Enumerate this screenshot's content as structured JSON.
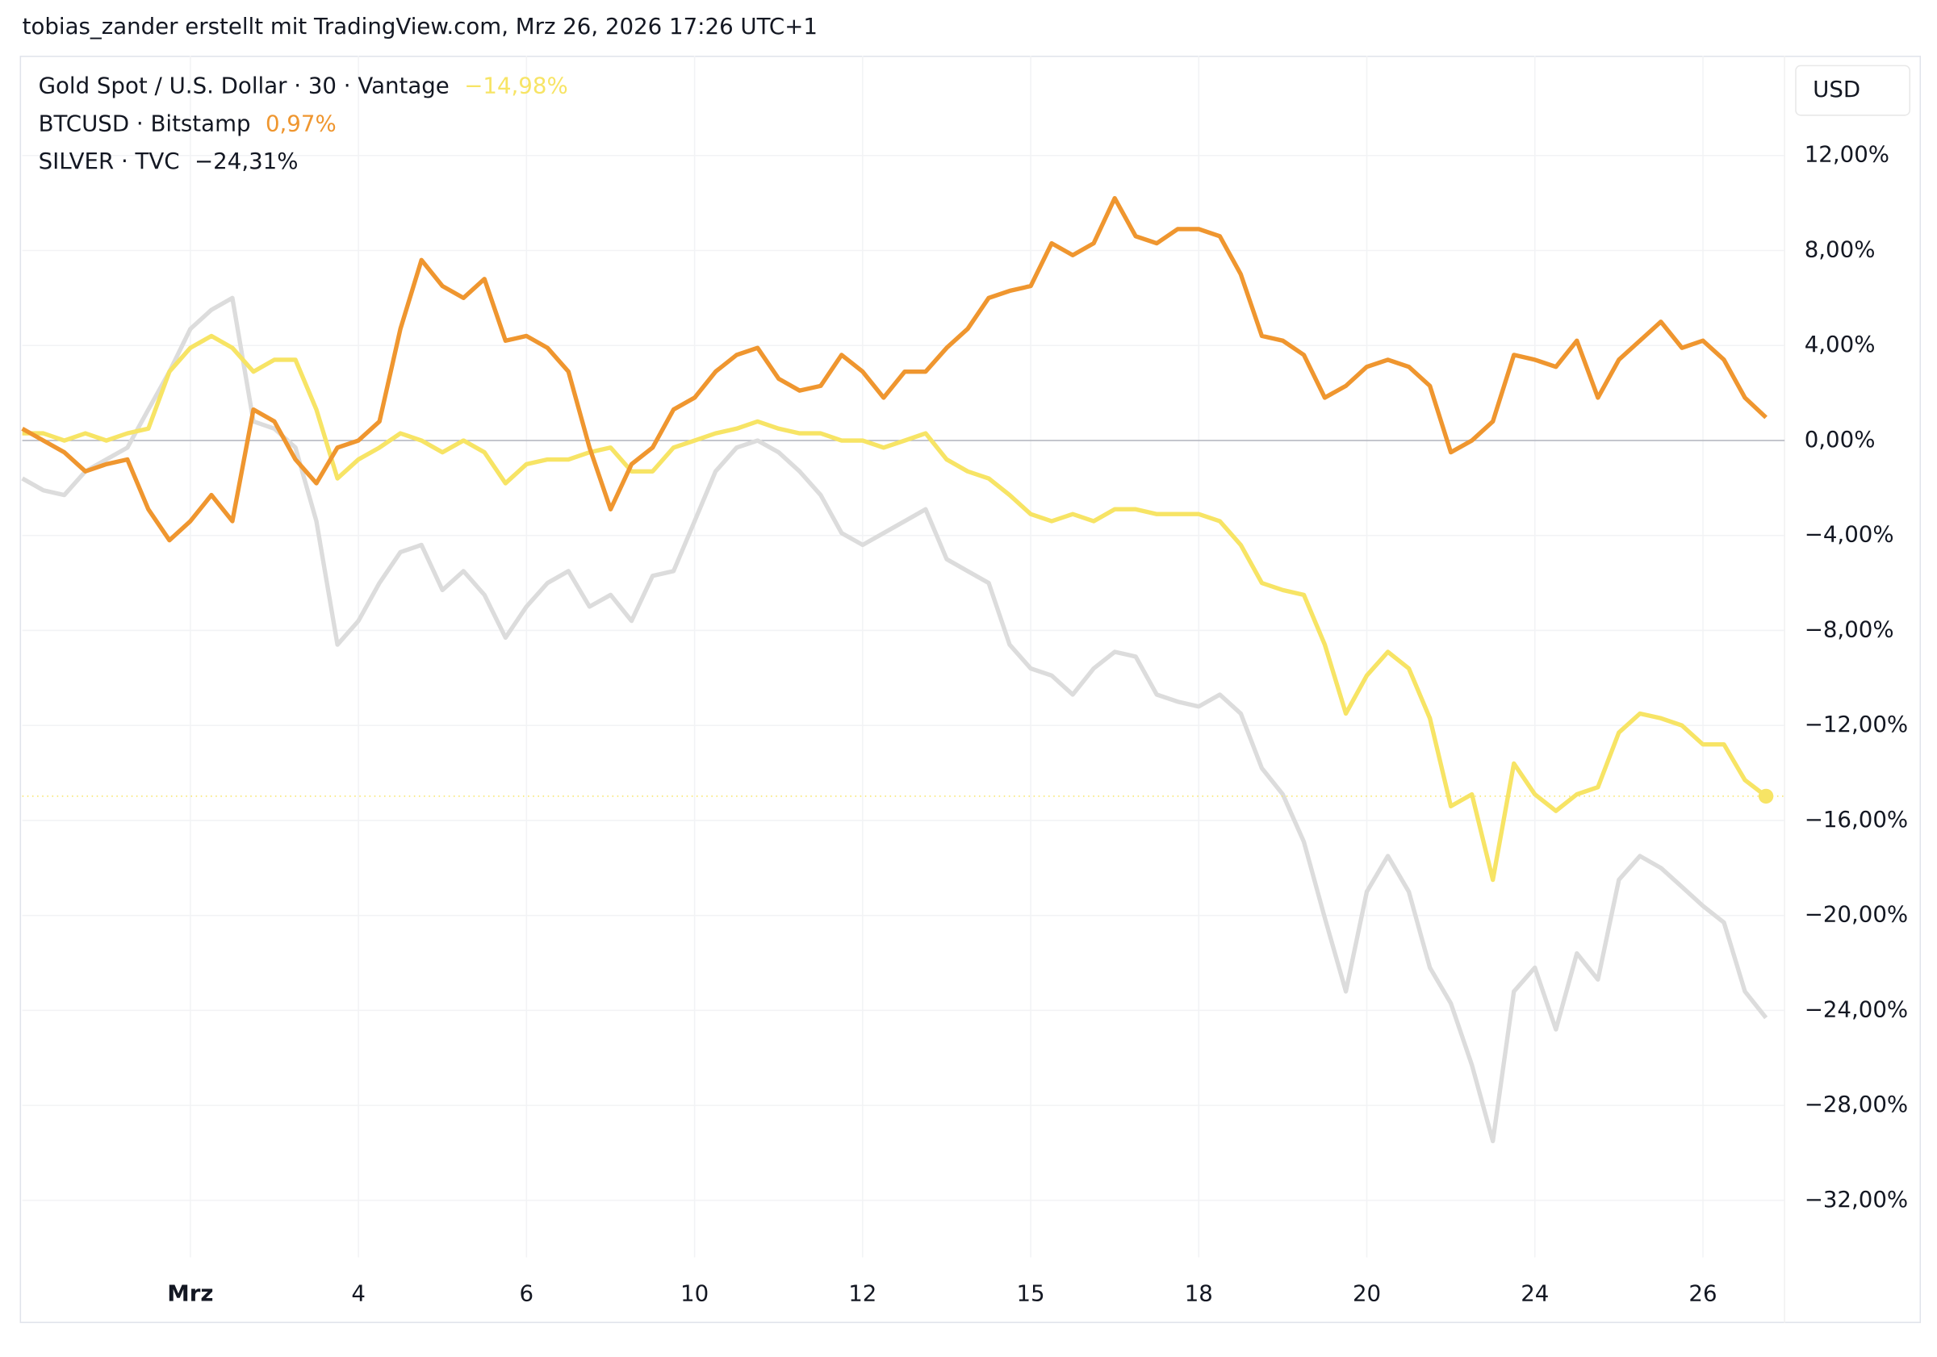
{
  "header": {
    "title": "tobias_zander erstellt mit TradingView.com, Mrz 26, 2026 17:26 UTC+1"
  },
  "chart_data": {
    "type": "line",
    "currency": "USD",
    "categories": [
      null,
      null,
      null,
      null,
      null,
      null,
      null,
      null,
      "Mrz",
      null,
      null,
      null,
      null,
      null,
      null,
      null,
      "4",
      null,
      null,
      null,
      null,
      null,
      null,
      null,
      "6",
      null,
      null,
      null,
      null,
      null,
      null,
      null,
      "10",
      null,
      null,
      null,
      null,
      null,
      null,
      null,
      "12",
      null,
      null,
      null,
      null,
      null,
      null,
      null,
      "15",
      null,
      null,
      null,
      null,
      null,
      null,
      null,
      "18",
      null,
      null,
      null,
      null,
      null,
      null,
      null,
      "20",
      null,
      null,
      null,
      null,
      null,
      null,
      null,
      "24",
      null,
      null,
      null,
      null,
      null,
      null,
      null,
      "26",
      null,
      null,
      null
    ],
    "series": [
      {
        "name": "Gold Spot / U.S. Dollar · 30 · Vantage",
        "last_value_label": "−14,98%",
        "color": "#f7e465",
        "values": [
          0.3,
          0.3,
          0,
          0.3,
          0,
          0.3,
          0.5,
          2.9,
          3.9,
          4.4,
          3.9,
          2.9,
          3.4,
          3.4,
          1.3,
          -1.6,
          -0.8,
          -0.3,
          0.3,
          0,
          -0.5,
          0,
          -0.5,
          -1.8,
          -1,
          -0.8,
          -0.8,
          -0.5,
          -0.3,
          -1.3,
          -1.3,
          -0.3,
          0,
          0.3,
          0.5,
          0.8,
          0.5,
          0.3,
          0.3,
          0,
          0,
          -0.3,
          0,
          0.3,
          -0.8,
          -1.3,
          -1.6,
          -2.3,
          -3.1,
          -3.4,
          -3.1,
          -3.4,
          -2.9,
          -2.9,
          -3.1,
          -3.1,
          -3.1,
          -3.4,
          -4.4,
          -6,
          -6.3,
          -6.5,
          -8.6,
          -11.5,
          -9.9,
          -8.9,
          -9.6,
          -11.7,
          -15.4,
          -14.9,
          -18.5,
          -13.6,
          -14.9,
          -15.6,
          -14.9,
          -14.6,
          -12.3,
          -11.5,
          -11.7,
          -12,
          -12.8,
          -12.8,
          -14.3,
          -14.98
        ]
      },
      {
        "name": "BTCUSD · Bitstamp",
        "last_value_label": "0,97%",
        "color": "#ef962f",
        "values": [
          0.5,
          0,
          -0.5,
          -1.3,
          -1,
          -0.8,
          -2.9,
          -4.2,
          -3.4,
          -2.3,
          -3.4,
          1.3,
          0.8,
          -0.8,
          -1.8,
          -0.3,
          0,
          0.8,
          4.7,
          7.6,
          6.5,
          6,
          6.8,
          4.2,
          4.4,
          3.9,
          2.9,
          -0.3,
          -2.9,
          -1,
          -0.3,
          1.3,
          1.8,
          2.9,
          3.6,
          3.9,
          2.6,
          2.1,
          2.3,
          3.6,
          2.9,
          1.8,
          2.9,
          2.9,
          3.9,
          4.7,
          6,
          6.3,
          6.5,
          8.3,
          7.8,
          8.3,
          10.2,
          8.6,
          8.3,
          8.9,
          8.9,
          8.6,
          7,
          4.4,
          4.2,
          3.6,
          1.8,
          2.3,
          3.1,
          3.4,
          3.1,
          2.3,
          -0.5,
          0,
          0.8,
          3.6,
          3.4,
          3.1,
          4.2,
          1.8,
          3.4,
          4.2,
          5,
          3.9,
          4.2,
          3.4,
          1.8,
          0.97
        ]
      },
      {
        "name": "SILVER · TVC",
        "last_value_label": "−24,31%",
        "color": "#dcdcdc",
        "values": [
          -1.6,
          -2.1,
          -2.3,
          -1.3,
          -0.8,
          -0.3,
          1.3,
          2.9,
          4.7,
          5.5,
          6,
          0.8,
          0.5,
          -0.3,
          -3.4,
          -8.6,
          -7.6,
          -6,
          -4.7,
          -4.4,
          -6.3,
          -5.5,
          -6.5,
          -8.3,
          -7,
          -6,
          -5.5,
          -7,
          -6.5,
          -7.6,
          -5.7,
          -5.5,
          -3.4,
          -1.3,
          -0.3,
          0,
          -0.5,
          -1.3,
          -2.3,
          -3.9,
          -4.4,
          -3.9,
          -3.4,
          -2.9,
          -5,
          -5.5,
          -6,
          -8.6,
          -9.6,
          -9.9,
          -10.7,
          -9.6,
          -8.9,
          -9.1,
          -10.7,
          -11,
          -11.2,
          -10.7,
          -11.5,
          -13.8,
          -14.9,
          -16.9,
          -20.1,
          -23.2,
          -19,
          -17.5,
          -19,
          -22.2,
          -23.7,
          -26.3,
          -29.5,
          -23.2,
          -22.2,
          -24.8,
          -21.6,
          -22.7,
          -18.5,
          -17.5,
          -18,
          -18.8,
          -19.6,
          -20.3,
          -23.2,
          -24.31
        ]
      }
    ],
    "ylim": [
      -34.4,
      16.2
    ],
    "yticks": [
      {
        "value": 12,
        "label": "12,00%"
      },
      {
        "value": 8,
        "label": "8,00%"
      },
      {
        "value": 4,
        "label": "4,00%"
      },
      {
        "value": 0,
        "label": "0,00%"
      },
      {
        "value": -4,
        "label": "−4,00%"
      },
      {
        "value": -8,
        "label": "−8,00%"
      },
      {
        "value": -12,
        "label": "−12,00%"
      },
      {
        "value": -16,
        "label": "−16,00%"
      },
      {
        "value": -20,
        "label": "−20,00%"
      },
      {
        "value": -24,
        "label": "−24,00%"
      },
      {
        "value": -28,
        "label": "−28,00%"
      },
      {
        "value": -32,
        "label": "−32,00%"
      }
    ],
    "grid": true
  }
}
